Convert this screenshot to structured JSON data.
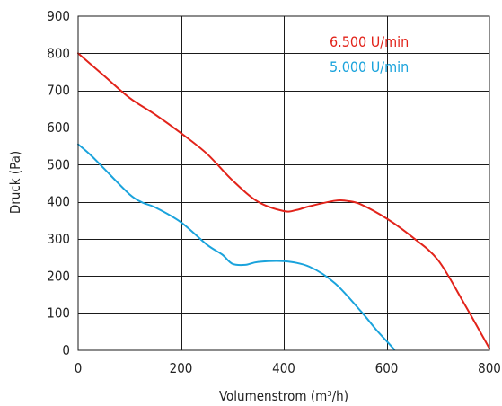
{
  "chart_data": {
    "type": "line",
    "title": "",
    "xlabel": "Volumenstrom (m³/h)",
    "ylabel": "Druck (Pa)",
    "xlim": [
      0,
      800
    ],
    "ylim": [
      0,
      900
    ],
    "xticks": [
      0,
      200,
      400,
      600,
      800
    ],
    "yticks": [
      0,
      100,
      200,
      300,
      400,
      500,
      600,
      700,
      800,
      900
    ],
    "xtick_labels": [
      "0",
      "200",
      "400",
      "600",
      "800"
    ],
    "ytick_labels": [
      "0",
      "100",
      "200",
      "300",
      "400",
      "500",
      "600",
      "700",
      "800",
      "900"
    ],
    "grid": true,
    "legend_position": "top-right",
    "series": [
      {
        "name": "6.500 U/min",
        "color": "#e2231a",
        "x": [
          0,
          50,
          100,
          150,
          200,
          250,
          300,
          350,
          400,
          425,
          450,
          500,
          525,
          550,
          600,
          650,
          700,
          750,
          800
        ],
        "y": [
          800,
          740,
          680,
          635,
          585,
          530,
          458,
          400,
          375,
          378,
          388,
          403,
          402,
          393,
          355,
          305,
          243,
          128,
          5
        ]
      },
      {
        "name": "5.000 U/min",
        "color": "#1aa3dc",
        "x": [
          0,
          25,
          50,
          100,
          125,
          150,
          200,
          250,
          280,
          300,
          325,
          350,
          400,
          450,
          500,
          550,
          580,
          600,
          615
        ],
        "y": [
          555,
          525,
          490,
          420,
          398,
          385,
          345,
          285,
          258,
          233,
          230,
          238,
          240,
          225,
          180,
          105,
          55,
          25,
          2
        ]
      }
    ]
  }
}
